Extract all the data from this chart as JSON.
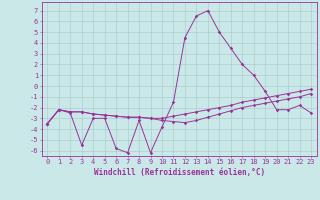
{
  "xlabel": "Windchill (Refroidissement éolien,°C)",
  "bg_color": "#cbe8e8",
  "grid_color": "#a0c8c8",
  "line_color": "#993399",
  "x": [
    0,
    1,
    2,
    3,
    4,
    5,
    6,
    7,
    8,
    9,
    10,
    11,
    12,
    13,
    14,
    15,
    16,
    17,
    18,
    19,
    20,
    21,
    22,
    23
  ],
  "line1": [
    -3.5,
    -2.2,
    -2.5,
    -5.5,
    -3.0,
    -3.0,
    -5.8,
    -6.2,
    -3.2,
    -6.2,
    -3.8,
    -1.5,
    4.5,
    6.5,
    7.0,
    5.0,
    3.5,
    2.0,
    1.0,
    -0.5,
    -2.2,
    -2.2,
    -1.8,
    -2.5
  ],
  "line2": [
    -3.5,
    -2.2,
    -2.4,
    -2.4,
    -2.6,
    -2.7,
    -2.8,
    -2.9,
    -2.9,
    -3.0,
    -3.0,
    -2.8,
    -2.6,
    -2.4,
    -2.2,
    -2.0,
    -1.8,
    -1.5,
    -1.3,
    -1.1,
    -0.9,
    -0.7,
    -0.5,
    -0.3
  ],
  "line3": [
    -3.5,
    -2.2,
    -2.4,
    -2.4,
    -2.6,
    -2.7,
    -2.8,
    -2.9,
    -2.9,
    -3.0,
    -3.2,
    -3.3,
    -3.4,
    -3.2,
    -2.9,
    -2.6,
    -2.3,
    -2.0,
    -1.8,
    -1.6,
    -1.4,
    -1.2,
    -1.0,
    -0.7
  ],
  "yticks": [
    -6,
    -5,
    -4,
    -3,
    -2,
    -1,
    0,
    1,
    2,
    3,
    4,
    5,
    6,
    7
  ],
  "ylim": [
    -6.5,
    7.8
  ],
  "xlim": [
    -0.5,
    23.5
  ],
  "tick_fontsize": 5.0,
  "xlabel_fontsize": 5.5
}
